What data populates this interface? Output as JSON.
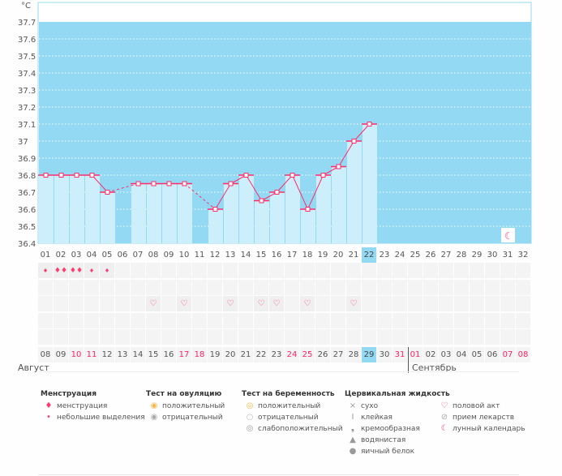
{
  "chart_data": {
    "type": "line",
    "ylabel": "°C",
    "ylim": [
      36.4,
      37.7
    ],
    "yticks": [
      "37.7",
      "37.6",
      "37.5",
      "37.4",
      "37.3",
      "37.2",
      "37.1",
      "37",
      "36.9",
      "36.8",
      "36.7",
      "36.6",
      "36.5",
      "36.4"
    ],
    "cycle_days": [
      "01",
      "02",
      "03",
      "04",
      "05",
      "06",
      "07",
      "08",
      "09",
      "10",
      "11",
      "12",
      "13",
      "14",
      "15",
      "16",
      "17",
      "18",
      "19",
      "20",
      "21",
      "22",
      "23",
      "24",
      "25",
      "26",
      "27",
      "28",
      "29",
      "30",
      "31",
      "32"
    ],
    "temperatures": [
      36.8,
      36.8,
      36.8,
      36.8,
      36.7,
      null,
      36.75,
      36.75,
      36.75,
      36.75,
      null,
      36.6,
      36.75,
      36.8,
      36.65,
      36.7,
      36.8,
      36.6,
      36.8,
      36.85,
      37.0,
      37.1,
      null,
      null,
      null,
      null,
      null,
      null,
      null,
      null,
      null,
      null
    ],
    "current_day_index": 21
  },
  "dates": [
    "08",
    "09",
    "10",
    "11",
    "12",
    "13",
    "14",
    "15",
    "16",
    "17",
    "18",
    "19",
    "20",
    "21",
    "22",
    "23",
    "24",
    "25",
    "26",
    "27",
    "28",
    "29",
    "30",
    "31",
    "01",
    "02",
    "03",
    "04",
    "05",
    "06",
    "07",
    "08"
  ],
  "weekend_dates": [
    2,
    3,
    9,
    10,
    16,
    17,
    23,
    24,
    30,
    31
  ],
  "months": {
    "first": "Август",
    "second": "Сентябрь"
  },
  "menstruation": [
    "heavy",
    "heavy-large",
    "heavy-large",
    "light",
    "light"
  ],
  "intercourse_days": [
    7,
    9,
    12,
    14,
    15,
    17,
    20
  ],
  "icons": {
    "drop": "💧",
    "heart": "♡",
    "moon": "☾"
  },
  "colors": {
    "plot_bg": "#94d9f3",
    "bar": "#cdeefb",
    "line": "#ff2c6a",
    "accent_red": "#ff2060"
  },
  "legend": [
    {
      "title": "Менструация",
      "items": [
        {
          "icon": "menstruation-icon",
          "g": "♦",
          "c": "#ff3b6e",
          "label": "менструация"
        },
        {
          "icon": "spotting-icon",
          "g": "•",
          "c": "#ff3b6e",
          "label": "небольшие выделения"
        }
      ]
    },
    {
      "title": "Тест на овуляцию",
      "items": [
        {
          "icon": "ovulation-positive-icon",
          "g": "◉",
          "c": "#f5b84a",
          "label": "положительный"
        },
        {
          "icon": "ovulation-negative-icon",
          "g": "◉",
          "c": "#aaa",
          "label": "отрицательный"
        }
      ]
    },
    {
      "title": "Тест на беременность",
      "items": [
        {
          "icon": "pregnancy-positive-icon",
          "g": "◎",
          "c": "#f5b84a",
          "label": "положительный"
        },
        {
          "icon": "pregnancy-negative-icon",
          "g": "○",
          "c": "#bbb",
          "label": "отрицательный"
        },
        {
          "icon": "pregnancy-weak-icon",
          "g": "◎",
          "c": "#999",
          "label": "слабоположительный"
        }
      ]
    },
    {
      "title": "Цервикальная жидкость",
      "items": [
        {
          "icon": "dry-icon",
          "g": "×",
          "c": "#999",
          "label": "сухо"
        },
        {
          "icon": "sticky-icon",
          "g": "I",
          "c": "#999",
          "label": "клейкая"
        },
        {
          "icon": "creamy-icon",
          "g": "❟",
          "c": "#888",
          "label": "кремообразная"
        },
        {
          "icon": "watery-icon",
          "g": "▲",
          "c": "#999",
          "label": "водянистая"
        },
        {
          "icon": "egg-white-icon",
          "g": "●",
          "c": "#999",
          "label": "яичный белок"
        }
      ]
    },
    {
      "title": "",
      "items": [
        {
          "icon": "heart-icon",
          "g": "♡",
          "c": "#ff3b6e",
          "label": "половой акт"
        },
        {
          "icon": "pill-icon",
          "g": "⊘",
          "c": "#aaa",
          "label": "прием лекарств"
        },
        {
          "icon": "moon-icon",
          "g": "☾",
          "c": "#ff3b6e",
          "label": "лунный календарь"
        }
      ]
    }
  ]
}
